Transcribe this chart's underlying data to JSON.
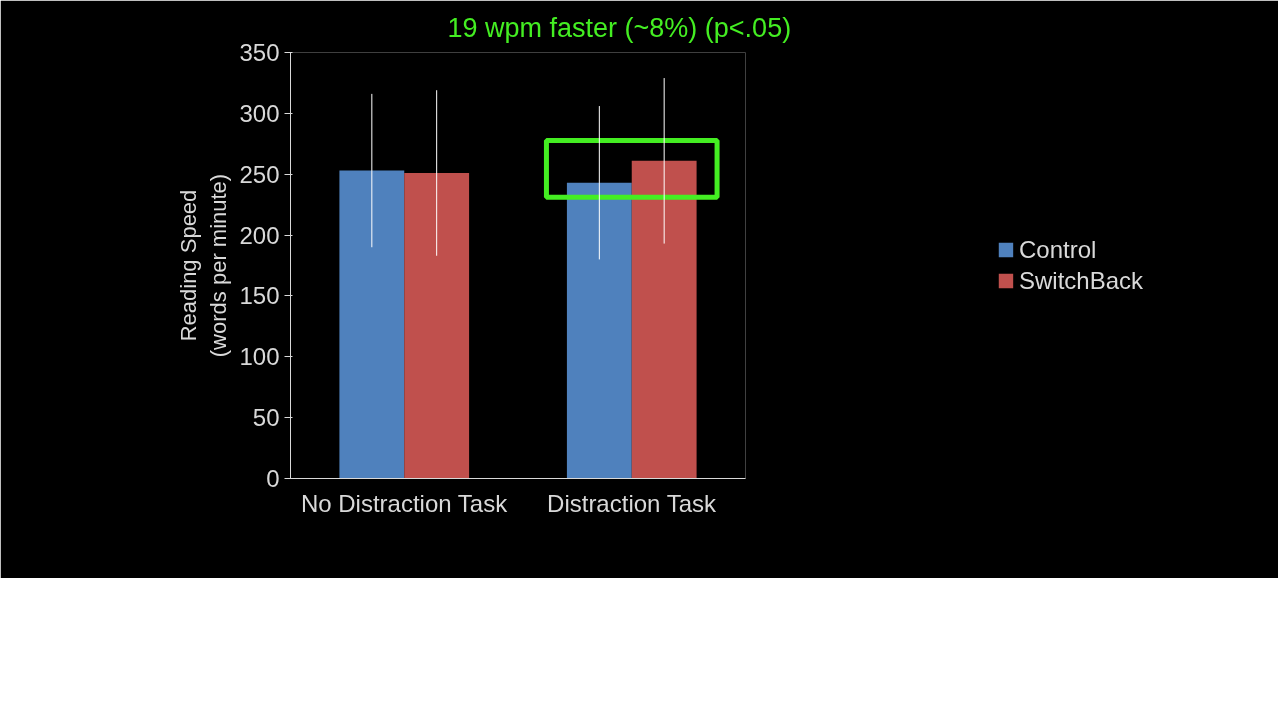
{
  "chart_data": {
    "type": "bar",
    "categories": [
      "No Distraction Task",
      "Distraction Task"
    ],
    "series": [
      {
        "name": "Control",
        "color": "#4f81bd",
        "values": [
          253,
          243
        ],
        "errors": [
          63,
          63
        ]
      },
      {
        "name": "SwitchBack",
        "color": "#c0504d",
        "values": [
          251,
          261
        ],
        "errors": [
          68,
          68
        ]
      }
    ],
    "ylabel": "Reading Speed\n(words per minute)",
    "ylim": [
      0,
      350
    ],
    "yticks": [
      0,
      50,
      100,
      150,
      200,
      250,
      300,
      350
    ],
    "annotations": [
      "19 wpm faster (~8%) (p<.05)"
    ],
    "grid": false,
    "legend": "right"
  }
}
